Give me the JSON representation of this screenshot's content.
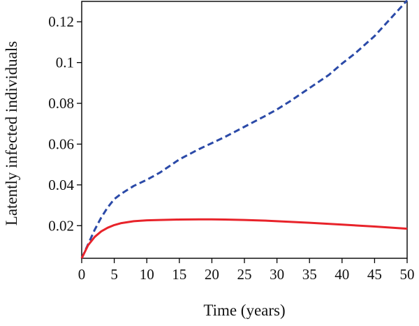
{
  "chart_data": {
    "type": "line",
    "title": "",
    "xlabel": "Time (years)",
    "ylabel": "Latently infected individuals",
    "xlim": [
      0,
      50
    ],
    "ylim": [
      0.004,
      0.13
    ],
    "x_ticks": [
      0,
      5,
      10,
      15,
      20,
      25,
      30,
      35,
      40,
      45,
      50
    ],
    "x_tick_labels": [
      "0",
      "5",
      "10",
      "15",
      "20",
      "25",
      "30",
      "35",
      "40",
      "45",
      "50"
    ],
    "y_ticks": [
      0.02,
      0.04,
      0.06,
      0.08,
      0.1,
      0.12
    ],
    "y_tick_labels": [
      "0.02",
      "0.04",
      "0.06",
      "0.08",
      "0.1",
      "0.12"
    ],
    "grid": false,
    "legend": "none",
    "series": [
      {
        "color": "#2b4aa8",
        "style": "dashed",
        "x": [
          0,
          1,
          2,
          3,
          4,
          5,
          6,
          7,
          8,
          10,
          12,
          15,
          18,
          20,
          22,
          25,
          28,
          30,
          32,
          35,
          38,
          40,
          42,
          45,
          48,
          50
        ],
        "y": [
          0.004,
          0.011,
          0.018,
          0.024,
          0.029,
          0.033,
          0.0355,
          0.0375,
          0.0395,
          0.0425,
          0.046,
          0.0525,
          0.0575,
          0.0605,
          0.0635,
          0.0685,
          0.0735,
          0.077,
          0.081,
          0.0875,
          0.094,
          0.0995,
          0.1045,
          0.113,
          0.1235,
          0.1305
        ]
      },
      {
        "color": "#e8232a",
        "style": "solid",
        "x": [
          0,
          1,
          2,
          3,
          4,
          5,
          6,
          8,
          10,
          12,
          15,
          18,
          20,
          22,
          25,
          28,
          30,
          35,
          40,
          45,
          50
        ],
        "y": [
          0.004,
          0.0105,
          0.0145,
          0.0172,
          0.019,
          0.0203,
          0.0212,
          0.0222,
          0.0226,
          0.0228,
          0.023,
          0.0231,
          0.0231,
          0.023,
          0.0228,
          0.0225,
          0.0222,
          0.0214,
          0.0205,
          0.0196,
          0.0185
        ]
      }
    ]
  }
}
